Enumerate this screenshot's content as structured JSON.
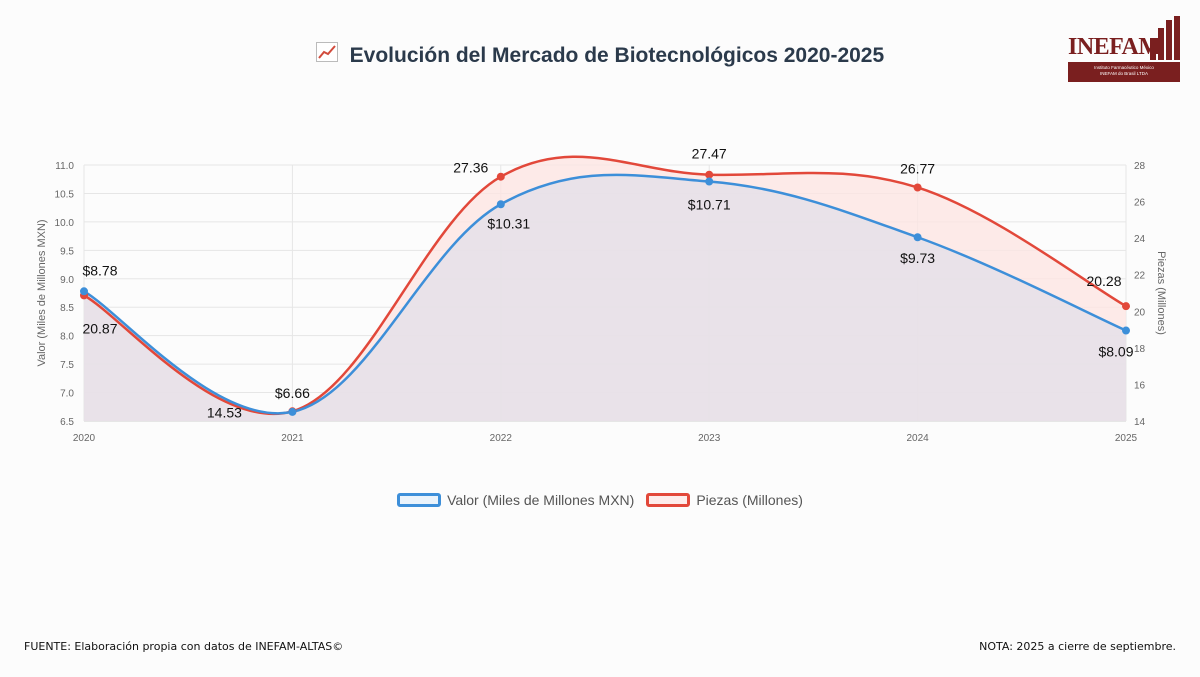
{
  "title": "Evolución del Mercado de Biotecnológicos 2020-2025",
  "title_icon": "chart-increasing-icon",
  "logo": {
    "name": "INEFAM",
    "line1": "Instituto Farmacéutico México",
    "line2": "INEFAM do Brasil LTDA"
  },
  "footer": {
    "source": "FUENTE: Elaboración propia con datos de INEFAM-ALTAS©",
    "note": "NOTA: 2025 a cierre de septiembre."
  },
  "colors": {
    "valor": "#3d8fd9",
    "piezas": "#e2483a",
    "fill_valor": "#e4e0e8",
    "fill_piezas": "#fde4e2"
  },
  "chart_data": {
    "type": "line",
    "title": "Evolución del Mercado de Biotecnológicos 2020-2025",
    "categories": [
      "2020",
      "2021",
      "2022",
      "2023",
      "2024",
      "2025"
    ],
    "ylabel": "Valor (Miles de Millones MXN)",
    "y2label": "Piezas (Millones)",
    "ylim": [
      6.5,
      11.0
    ],
    "y_ticks": [
      "6.5",
      "7.0",
      "7.5",
      "8.0",
      "8.5",
      "9.0",
      "9.5",
      "10.0",
      "10.5",
      "11.0"
    ],
    "y2lim": [
      14,
      28
    ],
    "y2_ticks": [
      "14",
      "16",
      "18",
      "20",
      "22",
      "24",
      "26",
      "28"
    ],
    "grid": true,
    "legend_position": "bottom",
    "series": [
      {
        "name": "Valor (Miles de Millones MXN)",
        "axis": "left",
        "values": [
          8.78,
          6.66,
          10.31,
          10.71,
          9.73,
          8.09
        ],
        "labels": [
          "$8.78",
          "$6.66",
          "$10.31",
          "$10.71",
          "$9.73",
          "$8.09"
        ]
      },
      {
        "name": "Piezas (Millones)",
        "axis": "right",
        "values": [
          20.87,
          14.53,
          27.36,
          27.47,
          26.77,
          20.28
        ],
        "labels": [
          "20.87",
          "14.53",
          "27.36",
          "27.47",
          "26.77",
          "20.28"
        ]
      }
    ]
  }
}
